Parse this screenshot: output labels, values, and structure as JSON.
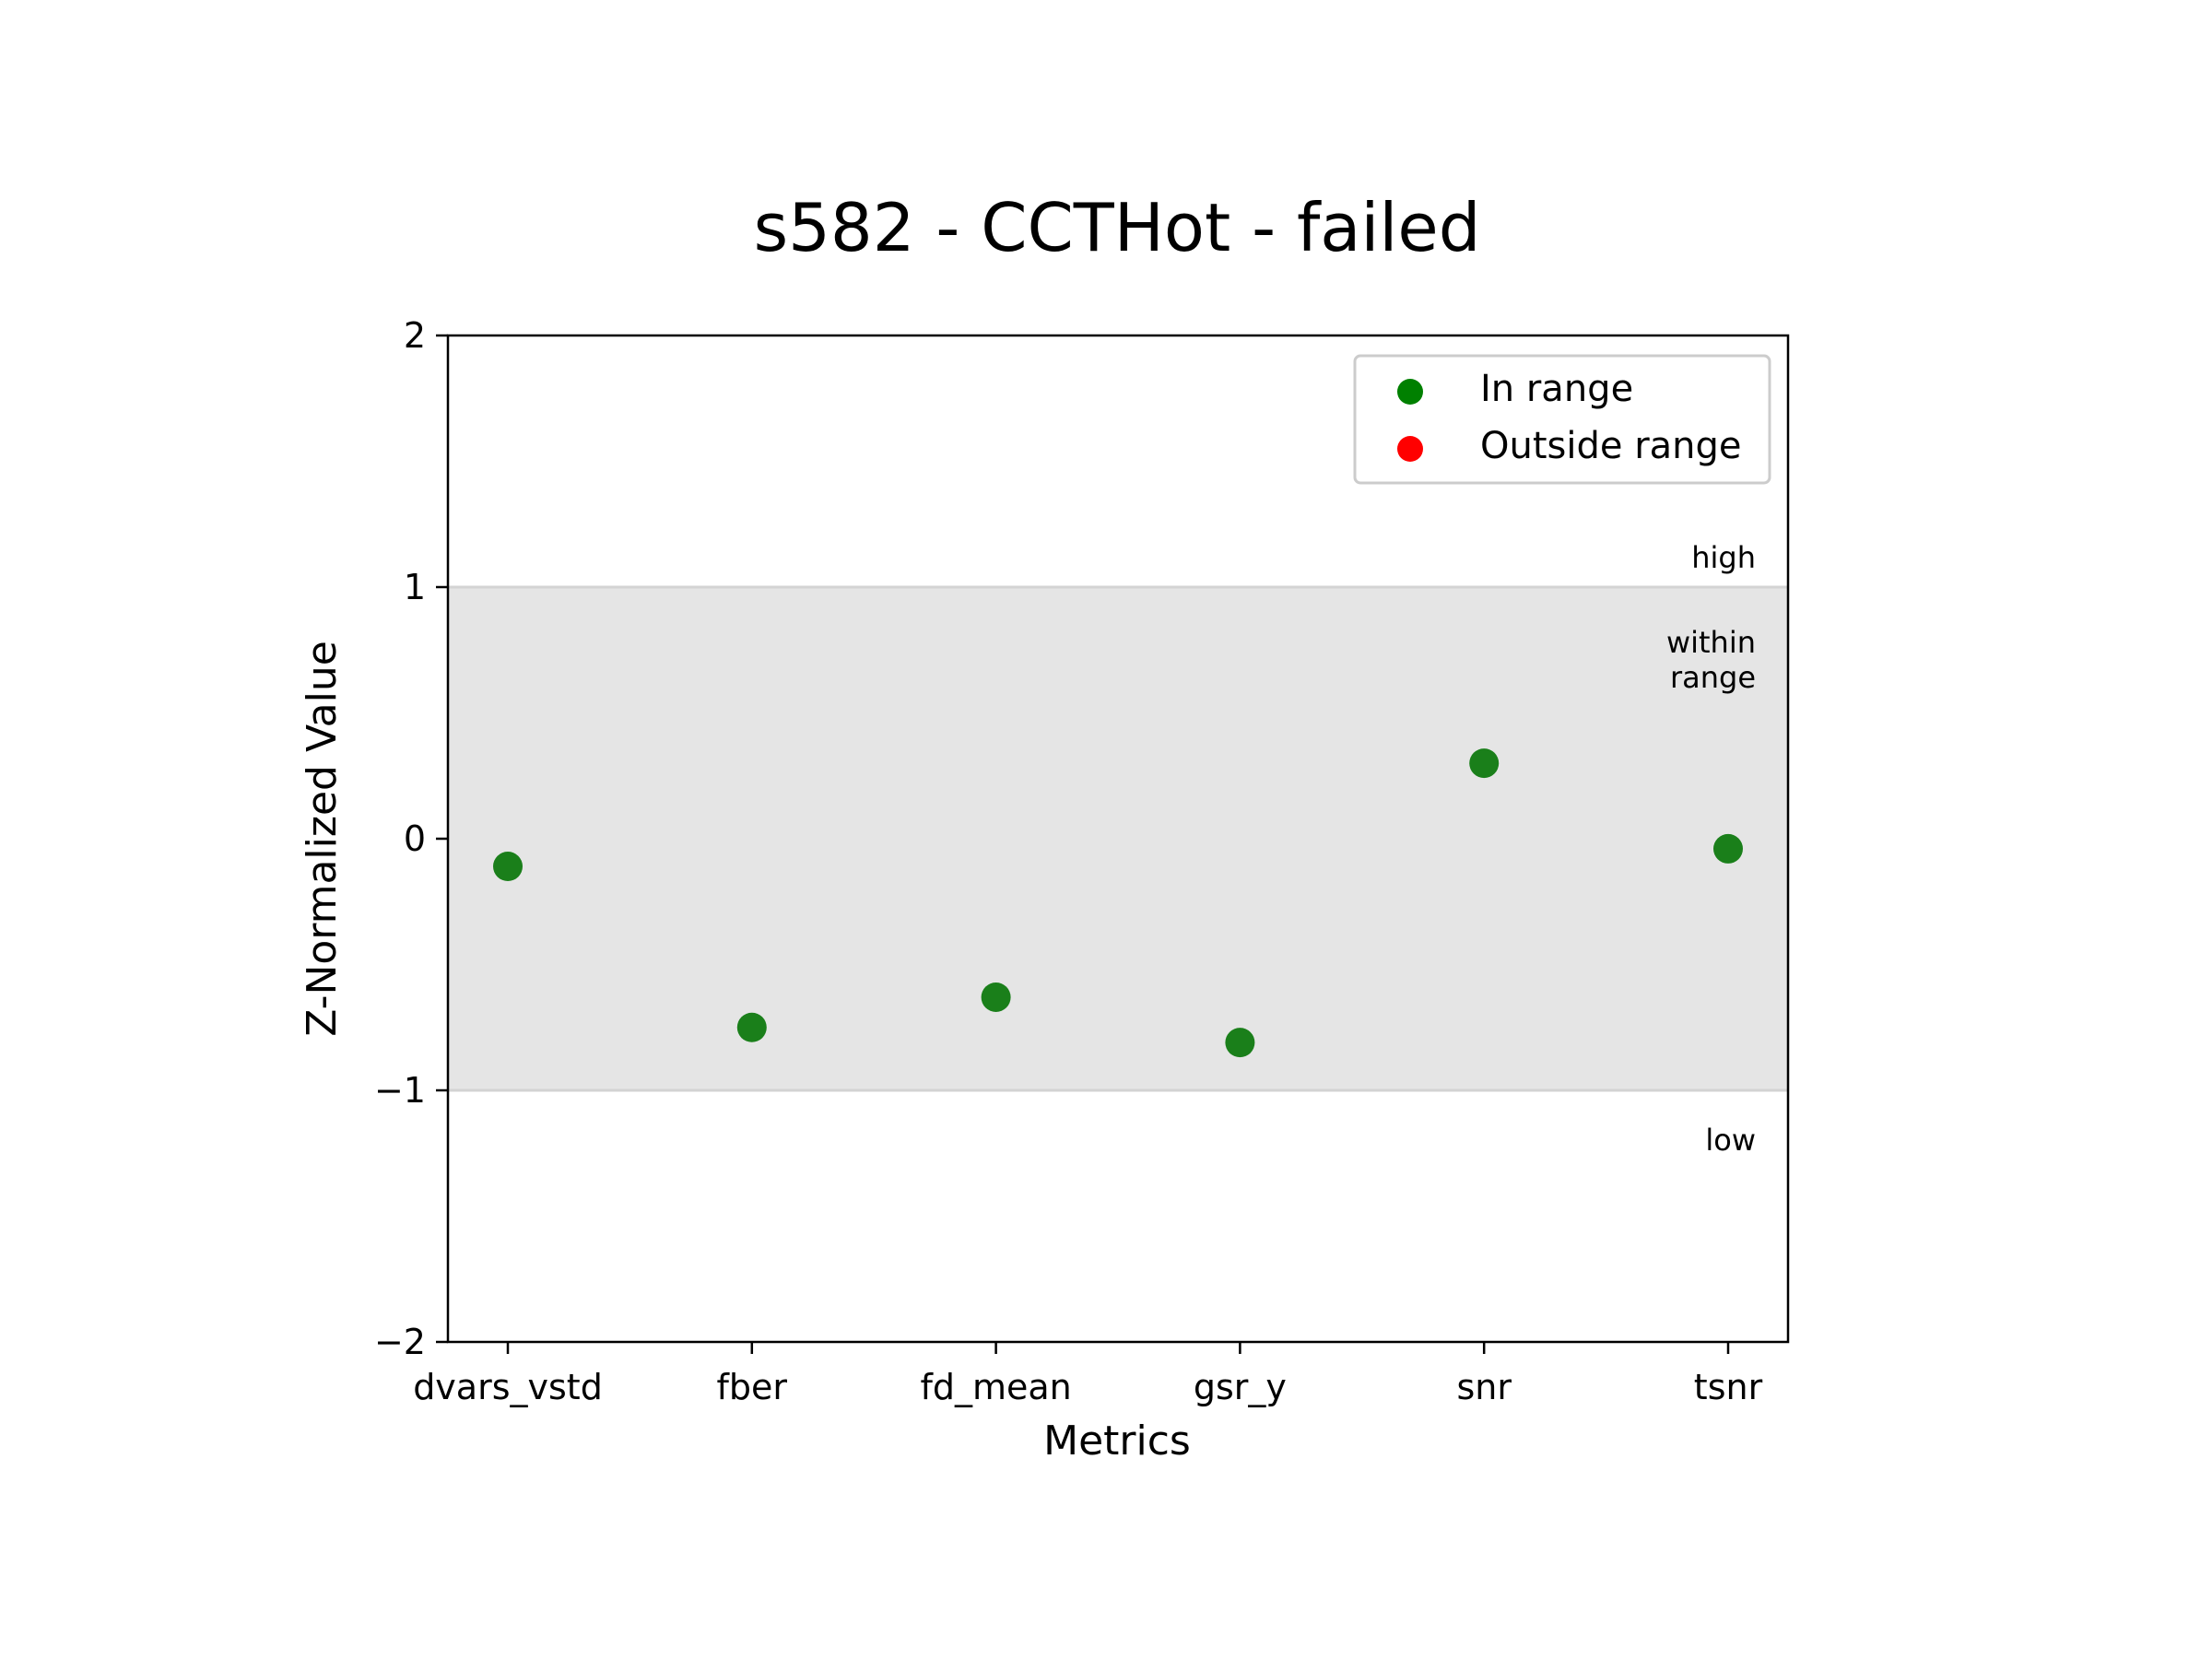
{
  "chart_data": {
    "type": "scatter",
    "title": "s582 - CCTHot - failed",
    "xlabel": "Metrics",
    "ylabel": "Z-Normalized Value",
    "ylim": [
      -2,
      2
    ],
    "yticks": [
      2,
      1,
      0,
      -1,
      -2
    ],
    "ytick_labels": [
      "2",
      "1",
      "0",
      "−1",
      "−2"
    ],
    "categories": [
      "dvars_vstd",
      "fber",
      "fd_mean",
      "gsr_y",
      "snr",
      "tsnr"
    ],
    "series": [
      {
        "name": "In range",
        "color": "#1a7f1a",
        "values": [
          -0.11,
          -0.75,
          -0.63,
          -0.81,
          0.3,
          -0.04
        ]
      },
      {
        "name": "Outside range",
        "color": "#ff0000",
        "values": []
      }
    ],
    "range_band": {
      "low": -1,
      "high": 1,
      "color": "#e5e5e5",
      "labels": {
        "high": "high",
        "within_line1": "within",
        "within_line2": "range",
        "low": "low"
      }
    },
    "legend": {
      "placement": "top-right",
      "entries": [
        {
          "label": "In range",
          "color": "#008000"
        },
        {
          "label": "Outside range",
          "color": "#ff0000"
        }
      ]
    },
    "grid": false
  }
}
